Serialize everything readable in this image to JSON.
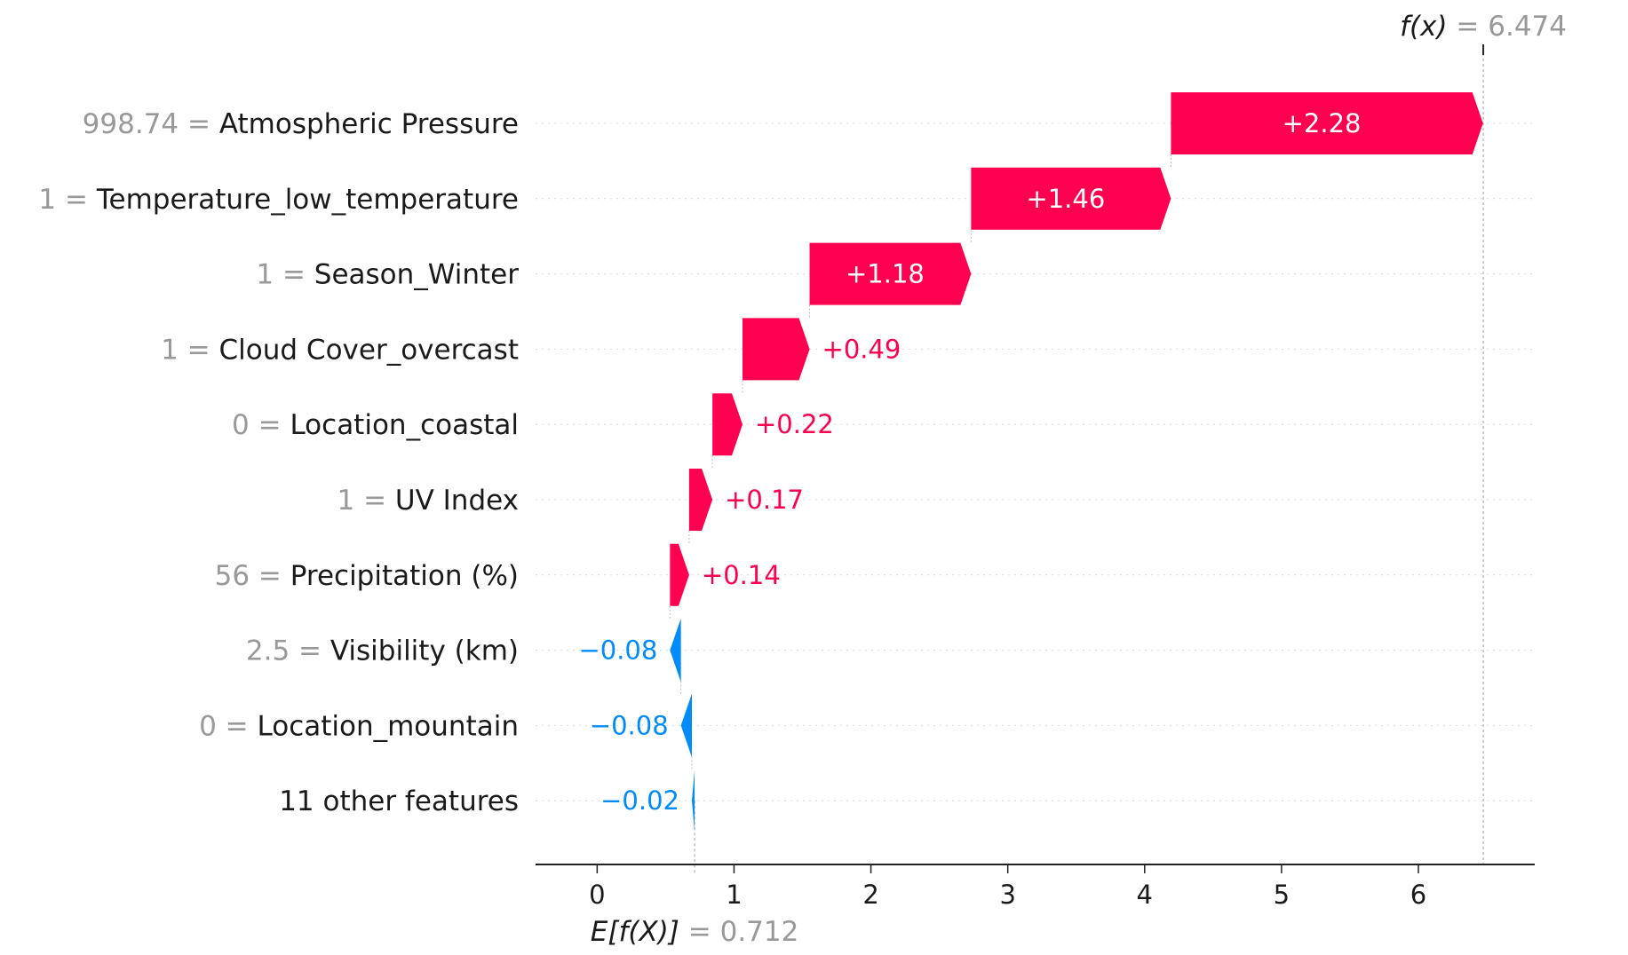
{
  "chart_data": {
    "type": "waterfall",
    "base_value": 0.712,
    "output_value": 6.474,
    "base_label": "E[f(X)]",
    "base_value_text": "0.712",
    "output_label": "f(x)",
    "output_value_text": "6.474",
    "xlim": [
      -0.45,
      6.85
    ],
    "xticks": [
      0,
      1,
      2,
      3,
      4,
      5,
      6
    ],
    "features": [
      {
        "name": "Atmospheric Pressure",
        "feature_value": "998.74",
        "shap": 2.28,
        "label": "+2.28"
      },
      {
        "name": "Temperature_low_temperature",
        "feature_value": "1",
        "shap": 1.46,
        "label": "+1.46"
      },
      {
        "name": "Season_Winter",
        "feature_value": "1",
        "shap": 1.18,
        "label": "+1.18"
      },
      {
        "name": "Cloud Cover_overcast",
        "feature_value": "1",
        "shap": 0.49,
        "label": "+0.49"
      },
      {
        "name": "Location_coastal",
        "feature_value": "0",
        "shap": 0.22,
        "label": "+0.22"
      },
      {
        "name": "UV Index",
        "feature_value": "1",
        "shap": 0.17,
        "label": "+0.17"
      },
      {
        "name": "Precipitation (%)",
        "feature_value": "56",
        "shap": 0.14,
        "label": "+0.14"
      },
      {
        "name": "Visibility (km)",
        "feature_value": "2.5",
        "shap": -0.08,
        "label": "−0.08"
      },
      {
        "name": "Location_mountain",
        "feature_value": "0",
        "shap": -0.08,
        "label": "−0.08"
      },
      {
        "name": "11 other features",
        "feature_value": "",
        "shap": -0.02,
        "label": "−0.02"
      }
    ],
    "colors": {
      "positive": "#ff0051",
      "negative": "#008bfb"
    },
    "grid": true
  }
}
